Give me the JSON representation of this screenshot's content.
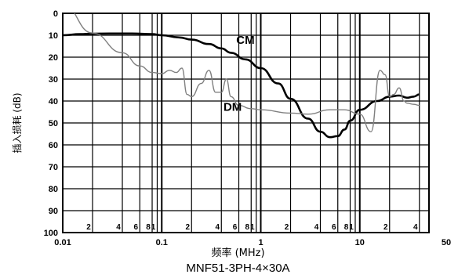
{
  "chart_data": {
    "type": "line",
    "xlabel": "频率 (MHz)",
    "ylabel": "插入损耗 (dB)",
    "caption": "MNF51-3PH-4×30A",
    "x_scale": "log",
    "xlim": [
      0.01,
      50
    ],
    "ylim": [
      0,
      100
    ],
    "y_inverted": true,
    "grid": true,
    "x_major_ticks": [
      {
        "value": 0.01,
        "label": "0.01"
      },
      {
        "value": 0.1,
        "label": "0.1"
      },
      {
        "value": 1,
        "label": "1"
      },
      {
        "value": 10,
        "label": "10"
      },
      {
        "value": 50,
        "label": "50"
      }
    ],
    "x_minor_ticks": [
      {
        "value": 0.02,
        "label": "2"
      },
      {
        "value": 0.04,
        "label": "4"
      },
      {
        "value": 0.06,
        "label": "6"
      },
      {
        "value": 0.08,
        "label": "8"
      },
      {
        "value": 0.09,
        "label": "1"
      },
      {
        "value": 0.2,
        "label": "2"
      },
      {
        "value": 0.4,
        "label": "4"
      },
      {
        "value": 0.6,
        "label": "6"
      },
      {
        "value": 0.8,
        "label": "8"
      },
      {
        "value": 0.9,
        "label": "1"
      },
      {
        "value": 2,
        "label": "2"
      },
      {
        "value": 4,
        "label": "4"
      },
      {
        "value": 6,
        "label": "6"
      },
      {
        "value": 8,
        "label": "8"
      },
      {
        "value": 9,
        "label": "1"
      },
      {
        "value": 20,
        "label": "2"
      },
      {
        "value": 40,
        "label": "4"
      }
    ],
    "y_ticks": [
      0,
      10,
      20,
      30,
      40,
      50,
      60,
      70,
      80,
      90,
      100
    ],
    "series": [
      {
        "name": "CM",
        "label_at": [
          0.7,
          14
        ],
        "color": "#000000",
        "x": [
          0.01,
          0.015,
          0.02,
          0.03,
          0.05,
          0.08,
          0.1,
          0.15,
          0.2,
          0.3,
          0.4,
          0.5,
          0.7,
          1.0,
          1.5,
          2.0,
          3.0,
          4.0,
          5.0,
          6.0,
          7.0,
          8.0,
          10.0,
          15.0,
          20.0,
          25.0,
          30.0,
          35.0,
          40.0
        ],
        "y": [
          10,
          9.5,
          9.3,
          9.2,
          9.2,
          9.5,
          10,
          11,
          12,
          14,
          16,
          18,
          21,
          25,
          32,
          39,
          48,
          54,
          56.5,
          56,
          53,
          49,
          44,
          40,
          38,
          37.5,
          38.5,
          38,
          37
        ]
      },
      {
        "name": "DM",
        "label_at": [
          0.52,
          44.5
        ],
        "color": "#808080",
        "x": [
          0.01,
          0.02,
          0.04,
          0.06,
          0.08,
          0.1,
          0.12,
          0.14,
          0.16,
          0.18,
          0.2,
          0.25,
          0.3,
          0.35,
          0.4,
          0.45,
          0.5,
          0.6,
          0.8,
          1.0,
          2.0,
          3.0,
          5.0,
          7.0,
          10.0,
          13.0,
          16.0,
          18.0,
          20.0,
          22.0,
          25.0,
          28.0,
          30.0,
          35.0,
          40.0
        ],
        "y": [
          -4,
          9,
          18,
          24,
          27,
          27.5,
          26,
          27,
          25,
          37,
          38,
          32,
          26,
          36,
          36,
          30,
          38,
          42,
          43.5,
          44,
          45.5,
          46,
          44,
          44,
          46,
          54,
          26,
          28,
          38,
          37,
          34,
          40,
          41,
          41.5,
          42
        ]
      }
    ]
  }
}
